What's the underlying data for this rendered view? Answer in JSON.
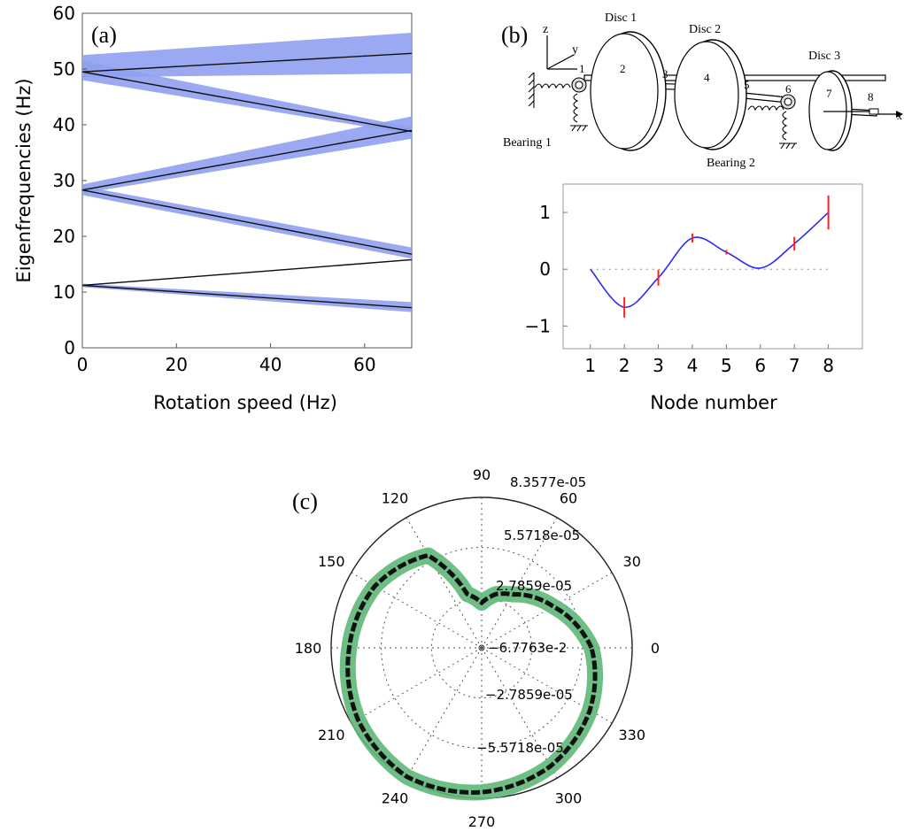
{
  "panel_a": {
    "panel_label": "(a)",
    "chart_data": {
      "type": "line",
      "xlabel": "Rotation speed (Hz)",
      "ylabel": "Eigenfrequencies (Hz)",
      "xlim": [
        0,
        70
      ],
      "ylim": [
        0,
        60
      ],
      "xticks": [
        0,
        20,
        40,
        60
      ],
      "yticks": [
        0,
        10,
        20,
        30,
        40,
        50,
        60
      ],
      "grid": false,
      "band_color": "#8fa0f0",
      "line_color": "#111111",
      "series": [
        {
          "x": [
            0,
            70
          ],
          "y": [
            11.2,
            7.2
          ],
          "band": [
            [
              11.5,
              10.9
            ],
            [
              8.2,
              6.4
            ]
          ]
        },
        {
          "x": [
            0,
            70
          ],
          "y": [
            11.2,
            15.8
          ],
          "band": [
            [
              11.3,
              11.1
            ],
            [
              15.9,
              15.7
            ]
          ]
        },
        {
          "x": [
            0,
            70
          ],
          "y": [
            28.3,
            16.8
          ],
          "band": [
            [
              29.0,
              27.4
            ],
            [
              18.0,
              16.0
            ]
          ]
        },
        {
          "x": [
            0,
            70
          ],
          "y": [
            28.3,
            39.0
          ],
          "band": [
            [
              29.3,
              27.7
            ],
            [
              41.5,
              37.5
            ]
          ]
        },
        {
          "x": [
            0,
            70
          ],
          "y": [
            49.5,
            38.8
          ],
          "band": [
            [
              51.5,
              48.0
            ],
            [
              39.5,
              38.3
            ]
          ]
        },
        {
          "x": [
            0,
            70
          ],
          "y": [
            49.5,
            52.8
          ],
          "band": [
            [
              52.5,
              48.5
            ],
            [
              56.5,
              49.2
            ]
          ]
        }
      ]
    }
  },
  "panel_b": {
    "panel_label": "(b)",
    "diagram": {
      "labels": {
        "disc1": "Disc 1",
        "disc2": "Disc 2",
        "disc3": "Disc 3",
        "bearing1": "Bearing 1",
        "bearing2": "Bearing 2",
        "axis_z": "z",
        "axis_y": "y",
        "axis_x": "x"
      },
      "node_labels": [
        "1",
        "2",
        "3",
        "4",
        "5",
        "6",
        "7",
        "8"
      ]
    },
    "chart_data": {
      "type": "line",
      "xlabel": "Node number",
      "ylabel": "",
      "xlim": [
        0.2,
        9.0
      ],
      "ylim": [
        -1.4,
        1.5
      ],
      "xticks": [
        1,
        2,
        3,
        4,
        5,
        6,
        7,
        8
      ],
      "yticks": [
        -1,
        0,
        1
      ],
      "ytick_labels": [
        "−1",
        "0",
        "1"
      ],
      "grid": false,
      "curve_color": "#2b2bf0",
      "error_color": "#ff2020",
      "x": [
        1,
        2,
        3,
        4,
        5,
        6,
        7,
        8
      ],
      "y": [
        0.0,
        -0.67,
        -0.15,
        0.55,
        0.3,
        0.02,
        0.45,
        1.0
      ],
      "error": [
        0.0,
        0.18,
        0.14,
        0.08,
        0.04,
        0.0,
        0.12,
        0.3
      ],
      "zero_line": true
    }
  },
  "panel_c": {
    "panel_label": "(c)",
    "chart_data": {
      "type": "polar",
      "angle_labels": [
        "0",
        "30",
        "60",
        "90",
        "120",
        "150",
        "180",
        "210",
        "240",
        "270",
        "300",
        "330"
      ],
      "radial_labels": [
        "−6.7763e-2",
        "2.7859e-05",
        "5.5718e-05",
        "8.3577e-05"
      ],
      "lower_labels": [
        "−2.7859e-05",
        "−5.5718e-05"
      ],
      "rmax": 8.3577e-05,
      "cardioid_color": "#5fb778",
      "trace_color": "#111111",
      "theta_deg": [
        0,
        30,
        60,
        75,
        90,
        105,
        120,
        150,
        180,
        210,
        240,
        270,
        300,
        330,
        360
      ],
      "r_frac": [
        0.73,
        0.55,
        0.41,
        0.37,
        0.3,
        0.37,
        0.71,
        0.82,
        0.88,
        0.95,
        0.99,
        0.96,
        0.91,
        0.83,
        0.73
      ]
    }
  }
}
